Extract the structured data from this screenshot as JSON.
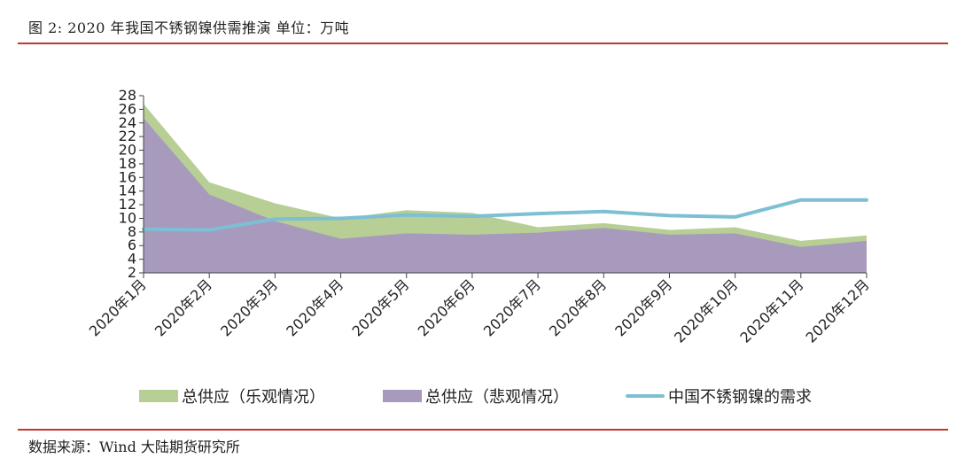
{
  "header": {
    "title": "图 2:  2020 年我国不锈钢镍供需推演 单位：万吨"
  },
  "footer": {
    "source": "数据来源：Wind  大陆期货研究所"
  },
  "colors": {
    "optimistic": "#b7cf94",
    "pessimistic": "#a89abd",
    "demand": "#7dbfd3",
    "rule": "#c0392b"
  },
  "chart_data": {
    "type": "area",
    "title": "",
    "xlabel": "",
    "ylabel": "",
    "ylim": [
      2,
      28
    ],
    "yticks": [
      2,
      4,
      6,
      8,
      10,
      12,
      14,
      16,
      18,
      20,
      22,
      24,
      26,
      28
    ],
    "categories": [
      "2020年1月",
      "2020年2月",
      "2020年3月",
      "2020年4月",
      "2020年5月",
      "2020年6月",
      "2020年7月",
      "2020年8月",
      "2020年9月",
      "2020年10月",
      "2020年11月",
      "2020年12月"
    ],
    "series": [
      {
        "name": "总供应（乐观情况）",
        "kind": "area",
        "color": "#b7cf94",
        "values": [
          26.8,
          15.3,
          12.2,
          10.0,
          11.2,
          10.8,
          8.7,
          9.3,
          8.3,
          8.7,
          6.7,
          7.5
        ]
      },
      {
        "name": "总供应（悲观情况）",
        "kind": "area",
        "color": "#a89abd",
        "values": [
          24.7,
          13.5,
          9.6,
          7.0,
          7.8,
          7.6,
          7.9,
          8.6,
          7.6,
          7.8,
          5.8,
          6.7
        ]
      },
      {
        "name": "中国不锈钢镍的需求",
        "kind": "line",
        "color": "#7dbfd3",
        "values": [
          8.4,
          8.3,
          9.9,
          10.0,
          10.5,
          10.3,
          10.7,
          11.0,
          10.4,
          10.2,
          12.7,
          12.7
        ]
      }
    ],
    "legend": "bottom",
    "grid": false
  }
}
